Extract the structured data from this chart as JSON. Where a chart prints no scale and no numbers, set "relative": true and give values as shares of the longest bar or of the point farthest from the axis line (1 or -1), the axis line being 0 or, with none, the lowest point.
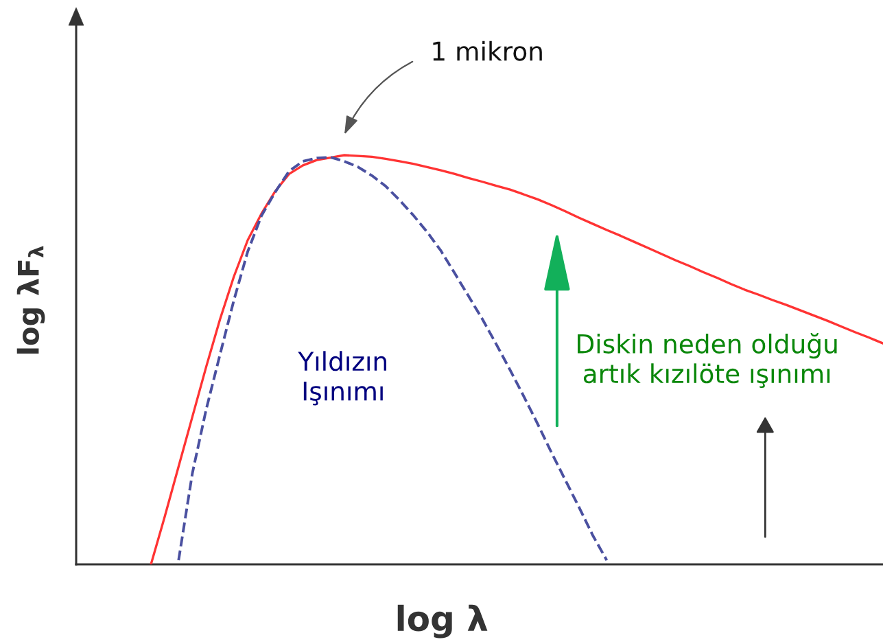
{
  "chart_data": {
    "type": "line",
    "relative": true,
    "categories": [
      null,
      null,
      null,
      null,
      null,
      null,
      null,
      null,
      null,
      null,
      null,
      null,
      null,
      null,
      null,
      null,
      null,
      null,
      null,
      null,
      null,
      null,
      null,
      null,
      null,
      null,
      null,
      null,
      null,
      null,
      null,
      null,
      null,
      null,
      null,
      null,
      null,
      null,
      null,
      null,
      null,
      null,
      null,
      null,
      null,
      null,
      null,
      null,
      null,
      null,
      null,
      null,
      null,
      null
    ],
    "xlabel": "log λ",
    "ylabel": "log λF$_{λ}$",
    "series": [
      {
        "color": "#ff3333",
        "line_style": "solid",
        "values": [
          0,
          0.117,
          0.239,
          0.361,
          0.483,
          0.599,
          0.703,
          0.792,
          0.857,
          0.912,
          0.954,
          0.975,
          0.988,
          0.994,
          1.0,
          0.998,
          0.996,
          0.991,
          0.985,
          0.979,
          0.971,
          0.963,
          0.954,
          0.944,
          0.935,
          0.925,
          0.916,
          0.904,
          0.892,
          0.878,
          0.863,
          0.847,
          0.832,
          0.817,
          0.803,
          0.788,
          0.773,
          0.758,
          0.743,
          0.729,
          0.714,
          0.7,
          0.685,
          0.671,
          0.659,
          0.646,
          0.634,
          0.621,
          0.608,
          0.595,
          0.581,
          0.567,
          0.554,
          0.54
        ]
      },
      {
        "color": "#4a50a0",
        "line_style": "dashed",
        "values": [
          null,
          null,
          0.01,
          0.223,
          0.379,
          0.513,
          0.645,
          0.764,
          0.852,
          0.91,
          0.961,
          0.985,
          0.993,
          0.995,
          0.985,
          0.971,
          0.95,
          0.924,
          0.89,
          0.853,
          0.812,
          0.766,
          0.711,
          0.655,
          0.599,
          0.538,
          0.475,
          0.41,
          0.343,
          0.273,
          0.206,
          0.139,
          0.07,
          0.01,
          null,
          null,
          null,
          null,
          null,
          null,
          null,
          null,
          null,
          null,
          null,
          null,
          null,
          null,
          null,
          null,
          null,
          null,
          null,
          null
        ]
      }
    ],
    "annotations": [
      "1 mikron",
      "Yıldızın\nIşınımı",
      "Diskin neden olduğu\nartık kızılöte ışınımı"
    ]
  }
}
